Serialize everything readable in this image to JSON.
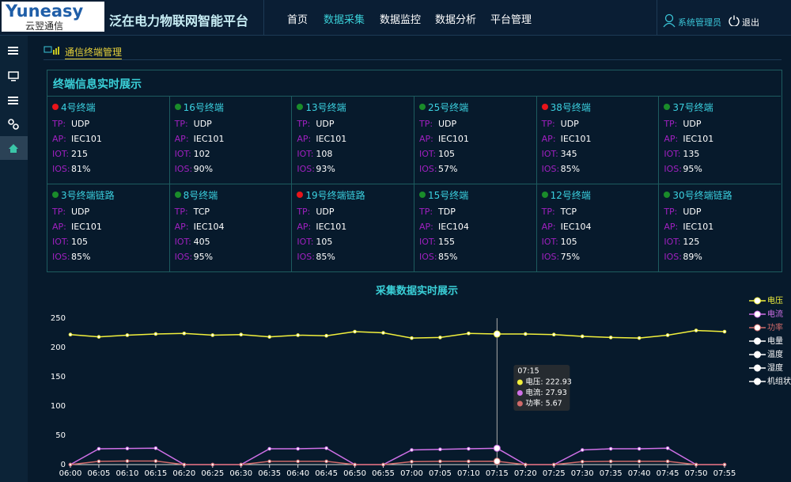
{
  "header": {
    "logo": {
      "brand": "Yuneasy",
      "sub": "云翌通信"
    },
    "title": "泛在电力物联网智能平台",
    "nav": [
      {
        "label": "首页"
      },
      {
        "label": "数据采集",
        "active": true
      },
      {
        "label": "数据监控"
      },
      {
        "label": "数据分析"
      },
      {
        "label": "平台管理"
      }
    ],
    "user": "系统管理员",
    "logout": "退出"
  },
  "breadcrumb": "通信终端管理",
  "terminals": {
    "title": "终端信息实时展示",
    "items": [
      {
        "name": "4号终端",
        "status_color": "#e8141a",
        "fields": [
          {
            "key": "TP:",
            "value": "UDP"
          },
          {
            "key": "AP:",
            "value": "IEC101"
          },
          {
            "key": "IOT:",
            "value": 215
          },
          {
            "key": "IOS:",
            "value": "81%"
          }
        ]
      },
      {
        "name": "16号终端",
        "status_color": "#1a8c2a",
        "fields": [
          {
            "key": "TP:",
            "value": "UDP"
          },
          {
            "key": "AP:",
            "value": "IEC101"
          },
          {
            "key": "IOT:",
            "value": 102
          },
          {
            "key": "IOS:",
            "value": "90%"
          }
        ]
      },
      {
        "name": "13号终端",
        "status_color": "#1a8c2a",
        "fields": [
          {
            "key": "TP:",
            "value": "UDP"
          },
          {
            "key": "AP:",
            "value": "IEC101"
          },
          {
            "key": "IOT:",
            "value": 108
          },
          {
            "key": "IOS:",
            "value": "93%"
          }
        ]
      },
      {
        "name": "25号终端",
        "status_color": "#1a8c2a",
        "fields": [
          {
            "key": "TP:",
            "value": "UDP"
          },
          {
            "key": "AP:",
            "value": "IEC101"
          },
          {
            "key": "IOT:",
            "value": 105
          },
          {
            "key": "IOS:",
            "value": "57%"
          }
        ]
      },
      {
        "name": "38号终端",
        "status_color": "#e8141a",
        "fields": [
          {
            "key": "TP:",
            "value": "UDP"
          },
          {
            "key": "AP:",
            "value": "IEC101"
          },
          {
            "key": "IOT:",
            "value": 345
          },
          {
            "key": "IOS:",
            "value": "85%"
          }
        ]
      },
      {
        "name": "37号终端",
        "status_color": "#1a8c2a",
        "fields": [
          {
            "key": "TP:",
            "value": "UDP"
          },
          {
            "key": "AP:",
            "value": "IEC101"
          },
          {
            "key": "IOT:",
            "value": 135
          },
          {
            "key": "IOS:",
            "value": "95%"
          }
        ]
      },
      {
        "name": "3号终端链路",
        "status_color": "#1a8c2a",
        "fields": [
          {
            "key": "TP:",
            "value": "UDP"
          },
          {
            "key": "AP:",
            "value": "IEC101"
          },
          {
            "key": "IOT:",
            "value": 105
          },
          {
            "key": "IOS:",
            "value": "85%"
          }
        ]
      },
      {
        "name": "8号终端",
        "status_color": "#1a8c2a",
        "fields": [
          {
            "key": "TP:",
            "value": "TCP"
          },
          {
            "key": "AP:",
            "value": "IEC104"
          },
          {
            "key": "IOT:",
            "value": 405
          },
          {
            "key": "IOS:",
            "value": "95%"
          }
        ]
      },
      {
        "name": "19号终端链路",
        "status_color": "#e8141a",
        "fields": [
          {
            "key": "TP:",
            "value": "UDP"
          },
          {
            "key": "AP:",
            "value": "IEC101"
          },
          {
            "key": "IOT:",
            "value": 105
          },
          {
            "key": "IOS:",
            "value": "85%"
          }
        ]
      },
      {
        "name": "15号终端",
        "status_color": "#1a8c2a",
        "fields": [
          {
            "key": "TP:",
            "value": "TDP"
          },
          {
            "key": "AP:",
            "value": "IEC104"
          },
          {
            "key": "IOT:",
            "value": 155
          },
          {
            "key": "IOS:",
            "value": "85%"
          }
        ]
      },
      {
        "name": "12号终端",
        "status_color": "#1a8c2a",
        "fields": [
          {
            "key": "TP:",
            "value": "TCP"
          },
          {
            "key": "AP:",
            "value": "IEC104"
          },
          {
            "key": "IOT:",
            "value": 105
          },
          {
            "key": "IOS:",
            "value": "75%"
          }
        ]
      },
      {
        "name": "30号终端链路",
        "status_color": "#1a8c2a",
        "fields": [
          {
            "key": "TP:",
            "value": "UDP"
          },
          {
            "key": "AP:",
            "value": "IEC101"
          },
          {
            "key": "IOT:",
            "value": 125
          },
          {
            "key": "IOS:",
            "value": "89%"
          }
        ]
      }
    ]
  },
  "chart_data": {
    "type": "line",
    "title": "采集数据实时展示",
    "categories": [
      "06:00",
      "06:05",
      "06:10",
      "06:15",
      "06:20",
      "06:25",
      "06:30",
      "06:35",
      "06:40",
      "06:45",
      "06:50",
      "06:55",
      "07:00",
      "07:05",
      "07:10",
      "07:15",
      "07:20",
      "07:25",
      "07:30",
      "07:35",
      "07:40",
      "07:45",
      "07:50",
      "07:55"
    ],
    "series": [
      {
        "name": "电压",
        "color": "#f2f03c",
        "values": [
          222,
          218,
          221,
          223,
          224,
          221,
          222,
          218,
          221,
          220,
          227,
          225,
          216,
          217,
          224,
          222.93,
          223,
          222,
          219,
          217,
          216,
          221,
          229,
          227
        ]
      },
      {
        "name": "电流",
        "color": "#d070e8",
        "values": [
          0,
          27,
          27.5,
          28,
          0,
          0,
          0,
          27,
          27,
          28,
          0,
          0,
          25,
          26,
          27,
          27.93,
          0,
          0,
          25,
          27,
          27,
          28,
          0,
          0
        ]
      },
      {
        "name": "功率",
        "color": "#d06a6a",
        "values": [
          0,
          5.5,
          6,
          6,
          0,
          0,
          0,
          5.5,
          5.5,
          5.5,
          0,
          0,
          5,
          5.5,
          5.5,
          5.67,
          0,
          0,
          5,
          5.5,
          5.5,
          5.5,
          0,
          0
        ]
      },
      {
        "name": "电量",
        "color": "#ffffff",
        "values": [
          null,
          null,
          null,
          null,
          null,
          null,
          null,
          null,
          null,
          null,
          null,
          null,
          null,
          null,
          null,
          null,
          null,
          null,
          null,
          null,
          null,
          null,
          null,
          null
        ]
      },
      {
        "name": "温度",
        "color": "#ffffff",
        "values": [
          null,
          null,
          null,
          null,
          null,
          null,
          null,
          null,
          null,
          null,
          null,
          null,
          null,
          null,
          null,
          null,
          null,
          null,
          null,
          null,
          null,
          null,
          null,
          null
        ]
      },
      {
        "name": "湿度",
        "color": "#ffffff",
        "values": [
          null,
          null,
          null,
          null,
          null,
          null,
          null,
          null,
          null,
          null,
          null,
          null,
          null,
          null,
          null,
          null,
          null,
          null,
          null,
          null,
          null,
          null,
          null,
          null
        ]
      },
      {
        "name": "机组状态",
        "color": "#ffffff",
        "values": [
          null,
          null,
          null,
          null,
          null,
          null,
          null,
          null,
          null,
          null,
          null,
          null,
          null,
          null,
          null,
          null,
          null,
          null,
          null,
          null,
          null,
          null,
          null,
          null
        ]
      }
    ],
    "ylim": [
      0,
      250
    ],
    "yticks": [
      0,
      50,
      100,
      150,
      200,
      250
    ],
    "grid": false,
    "legend": "right",
    "tooltip": {
      "title": "07:15",
      "items": [
        "电压: 222.93",
        "电流: 27.93",
        "功率: 5.67"
      ]
    }
  }
}
